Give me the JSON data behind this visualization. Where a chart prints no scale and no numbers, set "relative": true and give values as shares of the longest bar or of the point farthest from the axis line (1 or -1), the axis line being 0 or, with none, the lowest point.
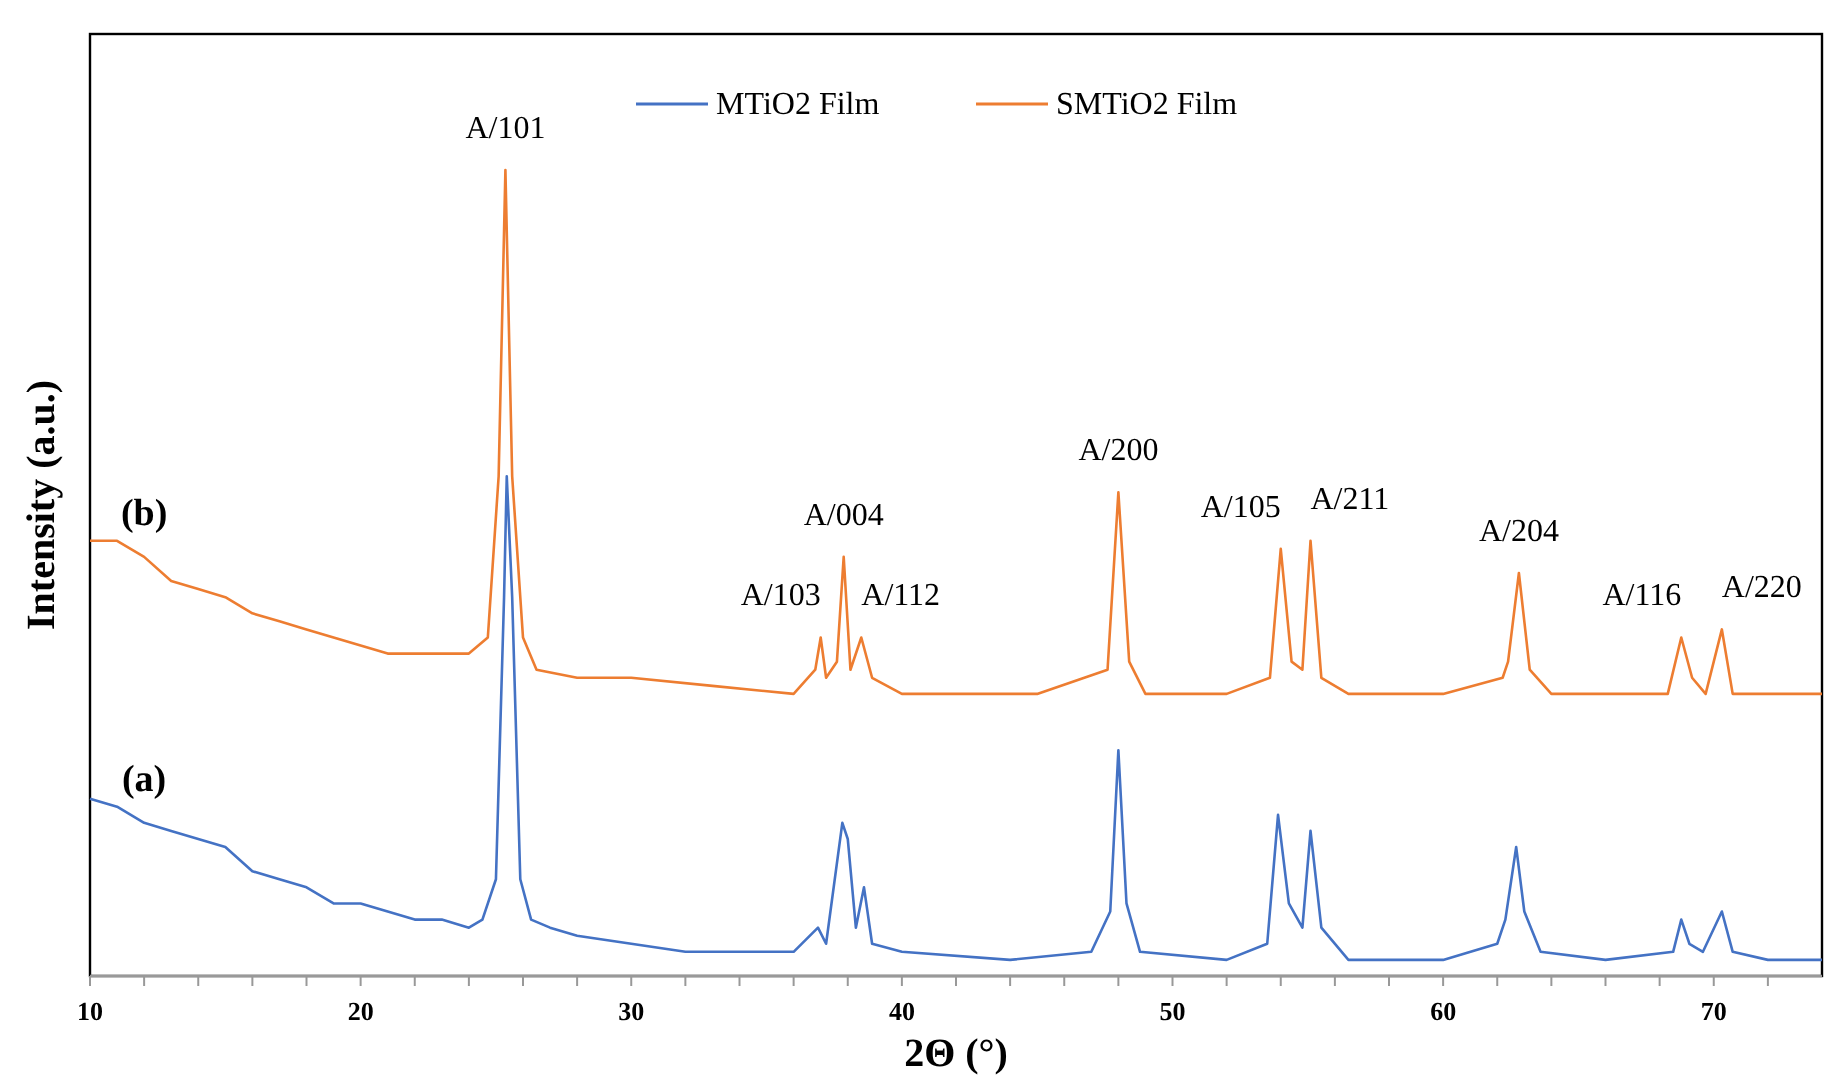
{
  "chart_data": {
    "type": "line",
    "relative": true,
    "xlabel": "2Θ (°)",
    "ylabel": "Intensity (a.u.)",
    "xlim": [
      10,
      74
    ],
    "xticks": [
      10,
      {
        "value": 12,
        "label": null
      },
      {
        "value": 14,
        "label": null
      },
      {
        "value": 16,
        "label": null
      },
      {
        "value": 18,
        "label": null
      },
      20,
      {
        "value": 22,
        "label": null
      },
      {
        "value": 24,
        "label": null
      },
      {
        "value": 26,
        "label": null
      },
      {
        "value": 28,
        "label": null
      },
      30,
      {
        "value": 32,
        "label": null
      },
      {
        "value": 34,
        "label": null
      },
      {
        "value": 36,
        "label": null
      },
      {
        "value": 38,
        "label": null
      },
      40,
      {
        "value": 42,
        "label": null
      },
      {
        "value": 44,
        "label": null
      },
      {
        "value": 46,
        "label": null
      },
      {
        "value": 48,
        "label": null
      },
      50,
      {
        "value": 52,
        "label": null
      },
      {
        "value": 54,
        "label": null
      },
      {
        "value": 56,
        "label": null
      },
      {
        "value": 58,
        "label": null
      },
      60,
      {
        "value": 62,
        "label": null
      },
      {
        "value": 64,
        "label": null
      },
      {
        "value": 66,
        "label": null
      },
      {
        "value": 68,
        "label": null
      },
      70,
      {
        "value": 72,
        "label": null
      }
    ],
    "legend": "top",
    "grid": false,
    "marker": "none",
    "line_style": "solid",
    "series": [
      {
        "name": "MTiO2 Film",
        "color": "#4472c4",
        "x": [
          10,
          11,
          12,
          13,
          14,
          15,
          16,
          17,
          18,
          19,
          20,
          21,
          22,
          23,
          24,
          24.5,
          25.0,
          25.3,
          25.4,
          25.6,
          25.9,
          26.3,
          27,
          28,
          30,
          32,
          34,
          36,
          36.9,
          37.2,
          37.8,
          38.0,
          38.3,
          38.6,
          38.9,
          40,
          44,
          47,
          47.7,
          48.0,
          48.3,
          48.8,
          52,
          53.5,
          53.9,
          54.3,
          54.8,
          55.1,
          55.5,
          56.5,
          60,
          62,
          62.3,
          62.7,
          63.0,
          63.6,
          66,
          68.5,
          68.8,
          69.1,
          69.6,
          70.3,
          70.7,
          72,
          74
        ],
        "values": [
          0.22,
          0.21,
          0.19,
          0.18,
          0.17,
          0.16,
          0.13,
          0.12,
          0.11,
          0.09,
          0.09,
          0.08,
          0.07,
          0.07,
          0.06,
          0.07,
          0.12,
          0.47,
          0.62,
          0.47,
          0.12,
          0.07,
          0.06,
          0.05,
          0.04,
          0.03,
          0.03,
          0.03,
          0.06,
          0.04,
          0.19,
          0.17,
          0.06,
          0.11,
          0.04,
          0.03,
          0.02,
          0.03,
          0.08,
          0.28,
          0.09,
          0.03,
          0.02,
          0.04,
          0.2,
          0.09,
          0.06,
          0.18,
          0.06,
          0.02,
          0.02,
          0.04,
          0.07,
          0.16,
          0.08,
          0.03,
          0.02,
          0.03,
          0.07,
          0.04,
          0.03,
          0.08,
          0.03,
          0.02,
          0.02
        ]
      },
      {
        "name": "SMTiO2 Film",
        "color": "#ed7d31",
        "x": [
          10,
          11,
          12,
          13,
          14,
          15,
          16,
          17,
          18,
          19,
          20,
          21,
          22,
          23,
          24,
          24.7,
          25.1,
          25.35,
          25.6,
          26.0,
          26.5,
          28,
          30,
          33,
          36,
          36.8,
          37.0,
          37.2,
          37.6,
          37.85,
          38.1,
          38.5,
          38.9,
          40,
          45,
          47.6,
          48.0,
          48.4,
          49,
          52,
          53.6,
          54.0,
          54.4,
          54.8,
          55.1,
          55.5,
          56.5,
          60,
          62.2,
          62.4,
          62.8,
          63.2,
          64,
          68.3,
          68.8,
          69.2,
          69.7,
          70.3,
          70.7,
          72,
          74
        ],
        "values": [
          0.54,
          0.54,
          0.52,
          0.49,
          0.48,
          0.47,
          0.45,
          0.44,
          0.43,
          0.42,
          0.41,
          0.4,
          0.4,
          0.4,
          0.4,
          0.42,
          0.62,
          1,
          0.62,
          0.42,
          0.38,
          0.37,
          0.37,
          0.36,
          0.35,
          0.38,
          0.42,
          0.37,
          0.39,
          0.52,
          0.38,
          0.42,
          0.37,
          0.35,
          0.35,
          0.38,
          0.6,
          0.39,
          0.35,
          0.35,
          0.37,
          0.53,
          0.39,
          0.38,
          0.54,
          0.37,
          0.35,
          0.35,
          0.37,
          0.39,
          0.5,
          0.38,
          0.35,
          0.35,
          0.42,
          0.37,
          0.35,
          0.43,
          0.35,
          0.35,
          0.35
        ]
      }
    ],
    "annotations": [
      {
        "text": "A/101",
        "x": 25.35,
        "y": 1
      },
      {
        "text": "A/103",
        "x": 37.0,
        "y": 0.42
      },
      {
        "text": "A/004",
        "x": 37.85,
        "y": 0.52
      },
      {
        "text": "A/112",
        "x": 38.5,
        "y": 0.42
      },
      {
        "text": "A/200",
        "x": 48.0,
        "y": 0.6
      },
      {
        "text": "A/105",
        "x": 54.0,
        "y": 0.53
      },
      {
        "text": "A/211",
        "x": 55.1,
        "y": 0.54
      },
      {
        "text": "A/204",
        "x": 62.8,
        "y": 0.5
      },
      {
        "text": "A/116",
        "x": 68.8,
        "y": 0.42
      },
      {
        "text": "A/220",
        "x": 70.3,
        "y": 0.43
      },
      {
        "text": "(b)",
        "x": 12,
        "y": 0.52
      },
      {
        "text": "(a)",
        "x": 12,
        "y": 0.19
      }
    ]
  }
}
